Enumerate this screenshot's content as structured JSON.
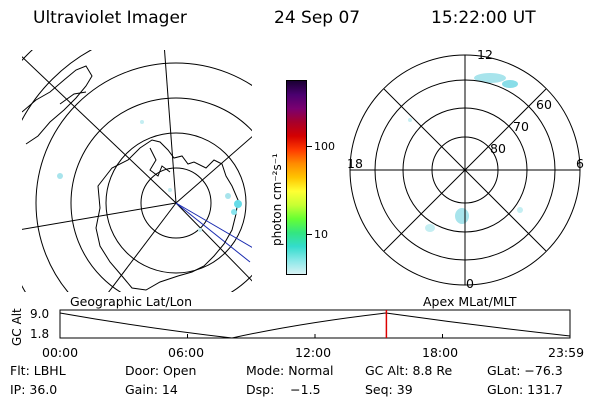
{
  "header": {
    "instrument": "Ultraviolet Imager",
    "date": "24 Sep 07",
    "time": "15:22:00 UT"
  },
  "left_panel": {
    "label": "Geographic Lat/Lon"
  },
  "right_panel": {
    "label": "Apex MLat/MLT",
    "mlt_labels": {
      "top": "12",
      "left": "18",
      "right": "6",
      "bottom": "0"
    },
    "lat_labels": [
      "60",
      "70",
      "80"
    ]
  },
  "colorbar": {
    "unit_label": "photon cm⁻²s⁻¹",
    "ticks": [
      "100",
      "10"
    ],
    "colors": [
      "#1a0033",
      "#4b0070",
      "#7a0070",
      "#a8002a",
      "#d40000",
      "#ff3b00",
      "#ff8c00",
      "#ffc400",
      "#ffff33",
      "#c8ff33",
      "#66ff33",
      "#33e680",
      "#33dccc",
      "#88e8e8",
      "#d8f2f4"
    ]
  },
  "timeline": {
    "axis_label": "GC Alt",
    "y_max": "9.0",
    "y_min": "1.8",
    "x_ticks": [
      "00:00",
      "06:00",
      "12:00",
      "18:00",
      "23:59"
    ],
    "current_time_fraction": 0.64,
    "marker_color": "#dd0000"
  },
  "footer": {
    "row1": [
      "Flt: LBHL",
      "Door: Open",
      "Mode: Normal",
      "GC Alt: 8.8 Re",
      "GLat: −76.3"
    ],
    "row2": [
      "IP: 36.0",
      "Gain: 14",
      "Dsp:    −1.5",
      "Seq: 39",
      "GLon: 131.7"
    ]
  },
  "emission_color": "#a8e4ec"
}
